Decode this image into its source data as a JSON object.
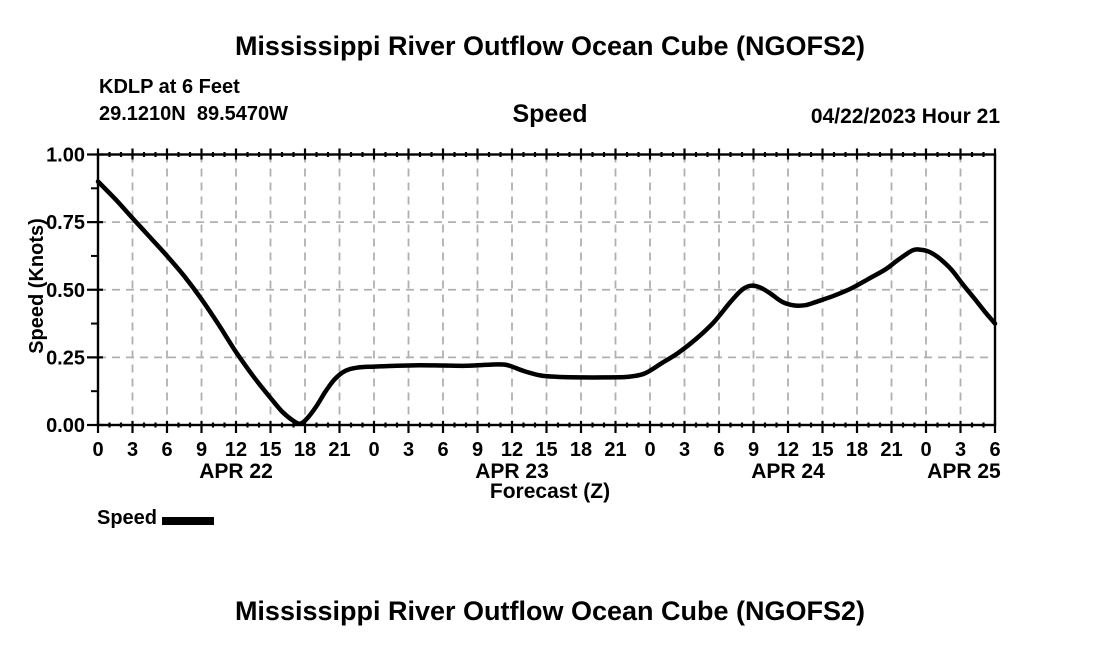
{
  "header": {
    "title": "Mississippi River Outflow Ocean Cube (NGOFS2)",
    "station_line1": "KDLP at 6 Feet",
    "station_line2": "29.1210N  89.5470W",
    "panel_label": "Speed",
    "run_label": "04/22/2023 Hour 21"
  },
  "footer": {
    "title": "Mississippi River Outflow Ocean Cube (NGOFS2)"
  },
  "legend": {
    "label": "Speed",
    "swatch_color": "#000000"
  },
  "chart_data": {
    "type": "line",
    "title": "Speed",
    "xlabel": "Forecast (Z)",
    "ylabel": "Speed (Knots)",
    "ylim": [
      0,
      1.0
    ],
    "x_hours_total": 78,
    "grid": true,
    "grid_color": "#b0b0b0",
    "line_color": "#000000",
    "legend_position": "bottom-left",
    "yticks": [
      [
        0,
        "0.00"
      ],
      [
        0.25,
        "0.25"
      ],
      [
        0.5,
        "0.50"
      ],
      [
        0.75,
        "0.75"
      ],
      [
        1,
        "1.00"
      ]
    ],
    "yticks_minor": [
      0.125,
      0.375,
      0.625,
      0.875
    ],
    "xticks": [
      [
        0,
        "0"
      ],
      [
        3,
        "3"
      ],
      [
        6,
        "6"
      ],
      [
        9,
        "9"
      ],
      [
        12,
        "12"
      ],
      [
        15,
        "15"
      ],
      [
        18,
        "18"
      ],
      [
        21,
        "21"
      ],
      [
        24,
        "0"
      ],
      [
        27,
        "3"
      ],
      [
        30,
        "6"
      ],
      [
        33,
        "9"
      ],
      [
        36,
        "12"
      ],
      [
        39,
        "15"
      ],
      [
        42,
        "18"
      ],
      [
        45,
        "21"
      ],
      [
        48,
        "0"
      ],
      [
        51,
        "3"
      ],
      [
        54,
        "6"
      ],
      [
        57,
        "9"
      ],
      [
        60,
        "12"
      ],
      [
        63,
        "15"
      ],
      [
        66,
        "18"
      ],
      [
        69,
        "21"
      ],
      [
        72,
        "0"
      ],
      [
        75,
        "3"
      ],
      [
        78,
        "6"
      ]
    ],
    "date_labels": [
      {
        "label": "APR 22",
        "center_hour": 12
      },
      {
        "label": "APR 23",
        "center_hour": 36
      },
      {
        "label": "APR 24",
        "center_hour": 60
      },
      {
        "label": "APR 25",
        "center_hour": 75.3
      }
    ],
    "series": [
      {
        "name": "Speed",
        "units": "Knots",
        "points": [
          [
            0,
            0.9
          ],
          [
            1.5,
            0.835
          ],
          [
            3,
            0.765
          ],
          [
            4.5,
            0.695
          ],
          [
            6,
            0.625
          ],
          [
            7.5,
            0.55
          ],
          [
            9,
            0.465
          ],
          [
            10.5,
            0.37
          ],
          [
            12,
            0.27
          ],
          [
            13.5,
            0.18
          ],
          [
            15,
            0.1
          ],
          [
            16,
            0.05
          ],
          [
            17,
            0.015
          ],
          [
            17.6,
            0.005
          ],
          [
            18.2,
            0.025
          ],
          [
            19,
            0.07
          ],
          [
            19.8,
            0.125
          ],
          [
            20.6,
            0.17
          ],
          [
            21.5,
            0.2
          ],
          [
            22.5,
            0.212
          ],
          [
            24,
            0.216
          ],
          [
            26,
            0.219
          ],
          [
            28,
            0.221
          ],
          [
            30,
            0.22
          ],
          [
            32,
            0.219
          ],
          [
            34,
            0.223
          ],
          [
            35.5,
            0.222
          ],
          [
            37,
            0.2
          ],
          [
            38.5,
            0.183
          ],
          [
            40,
            0.178
          ],
          [
            42,
            0.176
          ],
          [
            44,
            0.176
          ],
          [
            46,
            0.178
          ],
          [
            47.5,
            0.19
          ],
          [
            49,
            0.228
          ],
          [
            50.5,
            0.268
          ],
          [
            52,
            0.318
          ],
          [
            53.5,
            0.378
          ],
          [
            55,
            0.455
          ],
          [
            56,
            0.5
          ],
          [
            56.8,
            0.515
          ],
          [
            57.6,
            0.508
          ],
          [
            58.5,
            0.485
          ],
          [
            59.5,
            0.455
          ],
          [
            60.5,
            0.442
          ],
          [
            61.5,
            0.443
          ],
          [
            62.5,
            0.456
          ],
          [
            64,
            0.478
          ],
          [
            65.5,
            0.505
          ],
          [
            67,
            0.54
          ],
          [
            68.5,
            0.576
          ],
          [
            69.5,
            0.608
          ],
          [
            70.8,
            0.645
          ],
          [
            71.5,
            0.648
          ],
          [
            72.3,
            0.64
          ],
          [
            73.2,
            0.615
          ],
          [
            74.2,
            0.575
          ],
          [
            75.2,
            0.52
          ],
          [
            76.2,
            0.468
          ],
          [
            77.1,
            0.42
          ],
          [
            78,
            0.375
          ]
        ]
      }
    ]
  }
}
